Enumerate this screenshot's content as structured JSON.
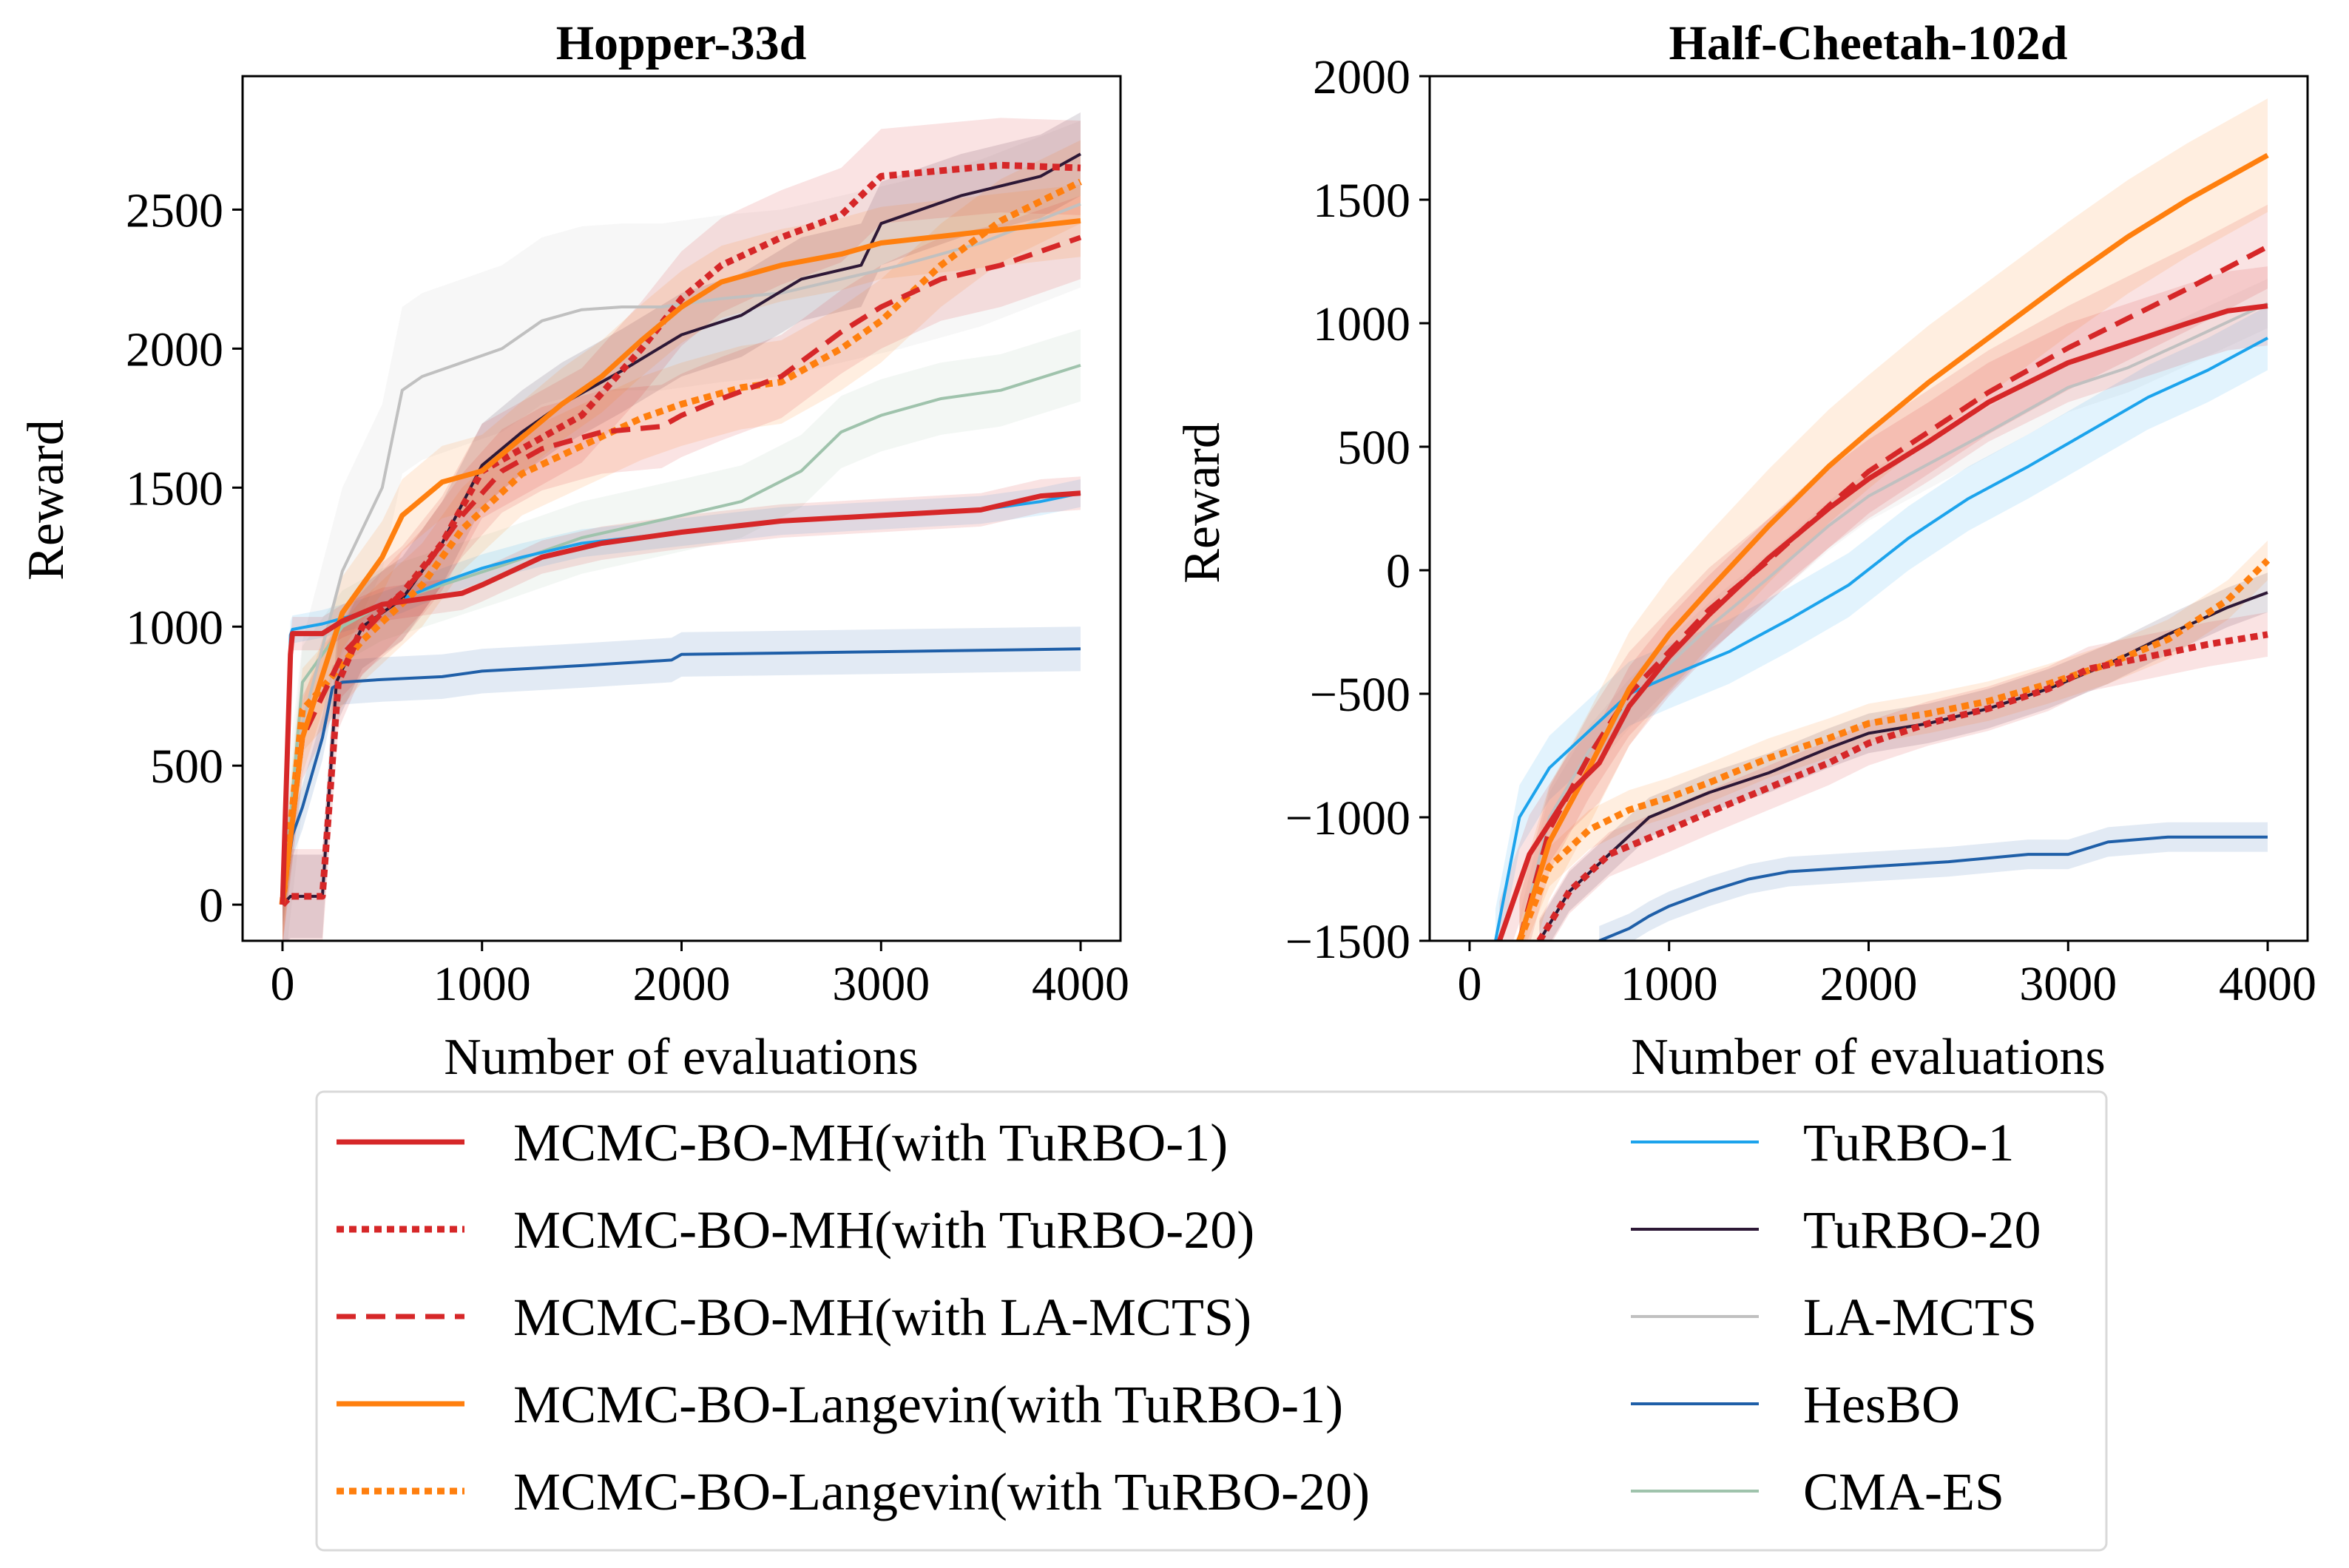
{
  "colors": {
    "mh_turbo1": "#d62728",
    "mh_turbo20": "#d62728",
    "mh_lamcts": "#d62728",
    "lan_turbo1": "#ff7f0e",
    "lan_turbo20": "#ff7f0e",
    "turbo1": "#1ca3ec",
    "turbo20": "#2d1836",
    "lamcts": "#c0c0c0",
    "hesbo": "#1f5fa8",
    "cmaes": "#9fc3ac"
  },
  "legend": {
    "left": [
      {
        "key": "mh_turbo1",
        "label": "MCMC-BO-MH(with TuRBO-1)",
        "style": "solid",
        "width": 7
      },
      {
        "key": "mh_turbo20",
        "label": "MCMC-BO-MH(with TuRBO-20)",
        "style": "dotted",
        "width": 9
      },
      {
        "key": "mh_lamcts",
        "label": "MCMC-BO-MH(with LA-MCTS)",
        "style": "dashed",
        "width": 7
      },
      {
        "key": "lan_turbo1",
        "label": "MCMC-BO-Langevin(with TuRBO-1)",
        "style": "solid",
        "width": 7
      },
      {
        "key": "lan_turbo20",
        "label": "MCMC-BO-Langevin(with TuRBO-20)",
        "style": "dotted",
        "width": 9
      }
    ],
    "right": [
      {
        "key": "turbo1",
        "label": "TuRBO-1",
        "style": "solid",
        "width": 4
      },
      {
        "key": "turbo20",
        "label": "TuRBO-20",
        "style": "solid",
        "width": 4
      },
      {
        "key": "lamcts",
        "label": "LA-MCTS",
        "style": "solid",
        "width": 4
      },
      {
        "key": "hesbo",
        "label": "HesBO",
        "style": "solid",
        "width": 4
      },
      {
        "key": "cmaes",
        "label": "CMA-ES",
        "style": "solid",
        "width": 4
      }
    ]
  },
  "chart_data": [
    {
      "type": "line",
      "title": "Hopper-33d",
      "xlabel": "Number of evaluations",
      "ylabel": "Reward",
      "xlim": [
        -200,
        4200
      ],
      "ylim": [
        -130,
        2980
      ],
      "xticks": [
        0,
        1000,
        2000,
        3000,
        4000
      ],
      "yticks": [
        0,
        500,
        1000,
        1500,
        2000,
        2500
      ],
      "xtick_labels": [
        "0",
        "1000",
        "2000",
        "3000",
        "4000"
      ],
      "ytick_labels": [
        "0",
        "500",
        "1000",
        "1500",
        "2000",
        "2500"
      ],
      "series": [
        {
          "key": "mh_turbo1",
          "name": "MCMC-BO-MH(with TuRBO-1)",
          "band": 60,
          "x": [
            0,
            40,
            50,
            200,
            300,
            500,
            700,
            900,
            1000,
            1300,
            1600,
            2000,
            2500,
            3000,
            3500,
            3800,
            4000
          ],
          "y": [
            0,
            900,
            975,
            975,
            1020,
            1080,
            1100,
            1120,
            1150,
            1250,
            1300,
            1340,
            1380,
            1400,
            1420,
            1470,
            1480
          ]
        },
        {
          "key": "mh_turbo20",
          "name": "MCMC-BO-MH(with TuRBO-20)",
          "band": 170,
          "x": [
            0,
            40,
            200,
            280,
            400,
            600,
            800,
            1000,
            1200,
            1500,
            1800,
            2000,
            2200,
            2500,
            2800,
            3000,
            3300,
            3600,
            4000
          ],
          "y": [
            0,
            30,
            30,
            800,
            1000,
            1120,
            1300,
            1560,
            1640,
            1760,
            2000,
            2180,
            2300,
            2400,
            2480,
            2620,
            2640,
            2660,
            2650
          ]
        },
        {
          "key": "mh_lamcts",
          "name": "MCMC-BO-MH(with LA-MCTS)",
          "band": 150,
          "x": [
            0,
            100,
            300,
            500,
            700,
            900,
            1100,
            1300,
            1600,
            1900,
            2000,
            2200,
            2500,
            2800,
            3000,
            3300,
            3600,
            4000
          ],
          "y": [
            0,
            600,
            900,
            1050,
            1200,
            1400,
            1560,
            1640,
            1700,
            1720,
            1760,
            1820,
            1900,
            2060,
            2150,
            2250,
            2300,
            2400
          ]
        },
        {
          "key": "lan_turbo1",
          "name": "MCMC-BO-Langevin(with TuRBO-1)",
          "band": 130,
          "x": [
            0,
            100,
            300,
            500,
            600,
            800,
            1000,
            1200,
            1400,
            1600,
            1800,
            2000,
            2200,
            2500,
            2800,
            3000,
            3500,
            4000
          ],
          "y": [
            0,
            600,
            1050,
            1250,
            1400,
            1520,
            1560,
            1680,
            1800,
            1900,
            2030,
            2150,
            2240,
            2300,
            2340,
            2380,
            2420,
            2460
          ]
        },
        {
          "key": "lan_turbo20",
          "name": "MCMC-BO-Langevin(with TuRBO-20)",
          "band": 150,
          "x": [
            0,
            100,
            200,
            400,
            700,
            900,
            1200,
            1500,
            1800,
            2000,
            2300,
            2500,
            2800,
            3000,
            3300,
            3600,
            4000
          ],
          "y": [
            0,
            700,
            780,
            950,
            1150,
            1350,
            1550,
            1650,
            1750,
            1800,
            1860,
            1880,
            2000,
            2100,
            2300,
            2460,
            2600
          ]
        },
        {
          "key": "turbo1",
          "name": "TuRBO-1",
          "band": 50,
          "x": [
            0,
            40,
            50,
            200,
            400,
            600,
            800,
            1000,
            1200,
            1500,
            2000,
            2500,
            3000,
            3500,
            3800,
            4000
          ],
          "y": [
            0,
            970,
            990,
            1010,
            1050,
            1100,
            1160,
            1210,
            1250,
            1300,
            1340,
            1380,
            1400,
            1420,
            1450,
            1480
          ]
        },
        {
          "key": "turbo20",
          "name": "TuRBO-20",
          "band": 150,
          "x": [
            0,
            40,
            200,
            270,
            400,
            600,
            800,
            1000,
            1200,
            1400,
            1700,
            2000,
            2300,
            2600,
            2900,
            3000,
            3400,
            3800,
            4000
          ],
          "y": [
            0,
            30,
            30,
            800,
            1000,
            1100,
            1300,
            1580,
            1700,
            1800,
            1920,
            2050,
            2120,
            2250,
            2300,
            2450,
            2550,
            2620,
            2700
          ]
        },
        {
          "key": "lamcts",
          "name": "LA-MCTS",
          "band": 300,
          "x": [
            0,
            100,
            300,
            500,
            600,
            700,
            900,
            1100,
            1300,
            1500,
            1700,
            1900,
            2200,
            2500,
            2800,
            3100,
            3500,
            4000
          ],
          "y": [
            0,
            650,
            1200,
            1500,
            1850,
            1900,
            1950,
            2000,
            2100,
            2140,
            2150,
            2150,
            2180,
            2200,
            2250,
            2300,
            2380,
            2520
          ]
        },
        {
          "key": "hesbo",
          "name": "HesBO",
          "band": 80,
          "x": [
            0,
            50,
            100,
            200,
            250,
            300,
            500,
            800,
            1000,
            1500,
            1950,
            2000,
            2500,
            3000,
            3500,
            4000
          ],
          "y": [
            0,
            250,
            350,
            600,
            780,
            800,
            810,
            820,
            840,
            860,
            880,
            900,
            905,
            910,
            915,
            920
          ]
        },
        {
          "key": "cmaes",
          "name": "CMA-ES",
          "band": 130,
          "x": [
            0,
            100,
            300,
            500,
            800,
            1100,
            1500,
            2000,
            2300,
            2600,
            2800,
            3000,
            3300,
            3600,
            4000
          ],
          "y": [
            0,
            800,
            1000,
            1080,
            1150,
            1220,
            1320,
            1400,
            1450,
            1560,
            1700,
            1760,
            1820,
            1850,
            1940
          ]
        }
      ]
    },
    {
      "type": "line",
      "title": "Half-Cheetah-102d",
      "xlabel": "Number of evaluations",
      "ylabel": "Reward",
      "xlim": [
        -200,
        4200
      ],
      "ylim": [
        -1500,
        2000
      ],
      "xticks": [
        0,
        1000,
        2000,
        3000,
        4000
      ],
      "yticks": [
        -1500,
        -1000,
        -500,
        0,
        500,
        1000,
        1500,
        2000
      ],
      "xtick_labels": [
        "0",
        "1000",
        "2000",
        "3000",
        "4000"
      ],
      "ytick_labels": [
        "−1500",
        "−1000",
        "−500",
        "0",
        "500",
        "1000",
        "1500",
        "2000"
      ],
      "series": [
        {
          "key": "mh_turbo1",
          "name": "MCMC-BO-MH(with TuRBO-1)",
          "band": 160,
          "x": [
            150,
            300,
            500,
            650,
            800,
            1000,
            1200,
            1500,
            1800,
            2000,
            2300,
            2600,
            3000,
            3300,
            3600,
            3800,
            4000
          ],
          "y": [
            -1500,
            -1150,
            -900,
            -780,
            -550,
            -350,
            -180,
            50,
            250,
            370,
            520,
            680,
            840,
            920,
            1000,
            1050,
            1070
          ]
        },
        {
          "key": "mh_turbo20",
          "name": "MCMC-BO-MH(with TuRBO-20)",
          "band": 90,
          "x": [
            350,
            500,
            700,
            1000,
            1200,
            1500,
            1800,
            2000,
            2300,
            2600,
            2900,
            3100,
            3400,
            3700,
            4000
          ],
          "y": [
            -1500,
            -1300,
            -1150,
            -1050,
            -980,
            -880,
            -780,
            -700,
            -620,
            -560,
            -480,
            -400,
            -350,
            -300,
            -260
          ]
        },
        {
          "key": "mh_lamcts",
          "name": "MCMC-BO-MH(with LA-MCTS)",
          "band": 170,
          "x": [
            250,
            400,
            600,
            800,
            1000,
            1200,
            1500,
            1800,
            2000,
            2300,
            2600,
            3000,
            3300,
            3600,
            4000
          ],
          "y": [
            -1500,
            -1050,
            -750,
            -500,
            -330,
            -160,
            40,
            260,
            400,
            560,
            720,
            900,
            1020,
            1140,
            1310
          ]
        },
        {
          "key": "lan_turbo1",
          "name": "MCMC-BO-Langevin(with TuRBO-1)",
          "band": 230,
          "x": [
            250,
            400,
            600,
            800,
            1000,
            1200,
            1500,
            1800,
            2000,
            2300,
            2600,
            3000,
            3300,
            3600,
            3800,
            4000
          ],
          "y": [
            -1500,
            -1100,
            -800,
            -480,
            -260,
            -80,
            180,
            420,
            560,
            760,
            940,
            1180,
            1350,
            1500,
            1590,
            1680
          ]
        },
        {
          "key": "lan_turbo20",
          "name": "MCMC-BO-Langevin(with TuRBO-20)",
          "band": 80,
          "x": [
            250,
            400,
            600,
            800,
            1000,
            1200,
            1500,
            1800,
            2000,
            2300,
            2600,
            2900,
            3200,
            3500,
            3800,
            4000
          ],
          "y": [
            -1500,
            -1200,
            -1050,
            -970,
            -920,
            -860,
            -760,
            -680,
            -620,
            -580,
            -530,
            -460,
            -380,
            -280,
            -120,
            40
          ]
        },
        {
          "key": "turbo1",
          "name": "TuRBO-1",
          "band": 130,
          "x": [
            130,
            250,
            400,
            600,
            800,
            1000,
            1300,
            1600,
            1900,
            2200,
            2500,
            2800,
            3100,
            3400,
            3700,
            4000
          ],
          "y": [
            -1500,
            -1000,
            -800,
            -650,
            -500,
            -430,
            -330,
            -200,
            -60,
            130,
            290,
            420,
            560,
            700,
            810,
            940
          ]
        },
        {
          "key": "turbo20",
          "name": "TuRBO-20",
          "band": 80,
          "x": [
            350,
            500,
            700,
            900,
            1200,
            1500,
            1800,
            2000,
            2300,
            2600,
            2900,
            3200,
            3500,
            3800,
            4000
          ],
          "y": [
            -1500,
            -1300,
            -1150,
            -1000,
            -900,
            -820,
            -720,
            -660,
            -620,
            -560,
            -480,
            -380,
            -260,
            -150,
            -90
          ]
        },
        {
          "key": "lamcts",
          "name": "LA-MCTS",
          "band": 100,
          "x": [
            250,
            400,
            600,
            800,
            1000,
            1200,
            1500,
            1800,
            2000,
            2300,
            2600,
            3000,
            3300,
            3600,
            4000
          ],
          "y": [
            -1500,
            -1000,
            -730,
            -540,
            -380,
            -230,
            -30,
            180,
            300,
            430,
            560,
            740,
            820,
            930,
            1080
          ]
        },
        {
          "key": "hesbo",
          "name": "HesBO",
          "band": 60,
          "x": [
            650,
            800,
            900,
            1000,
            1200,
            1400,
            1600,
            2000,
            2400,
            2800,
            3000,
            3200,
            3500,
            4000
          ],
          "y": [
            -1500,
            -1450,
            -1400,
            -1360,
            -1300,
            -1250,
            -1220,
            -1200,
            -1180,
            -1150,
            -1150,
            -1100,
            -1080,
            -1080
          ]
        }
      ]
    }
  ]
}
